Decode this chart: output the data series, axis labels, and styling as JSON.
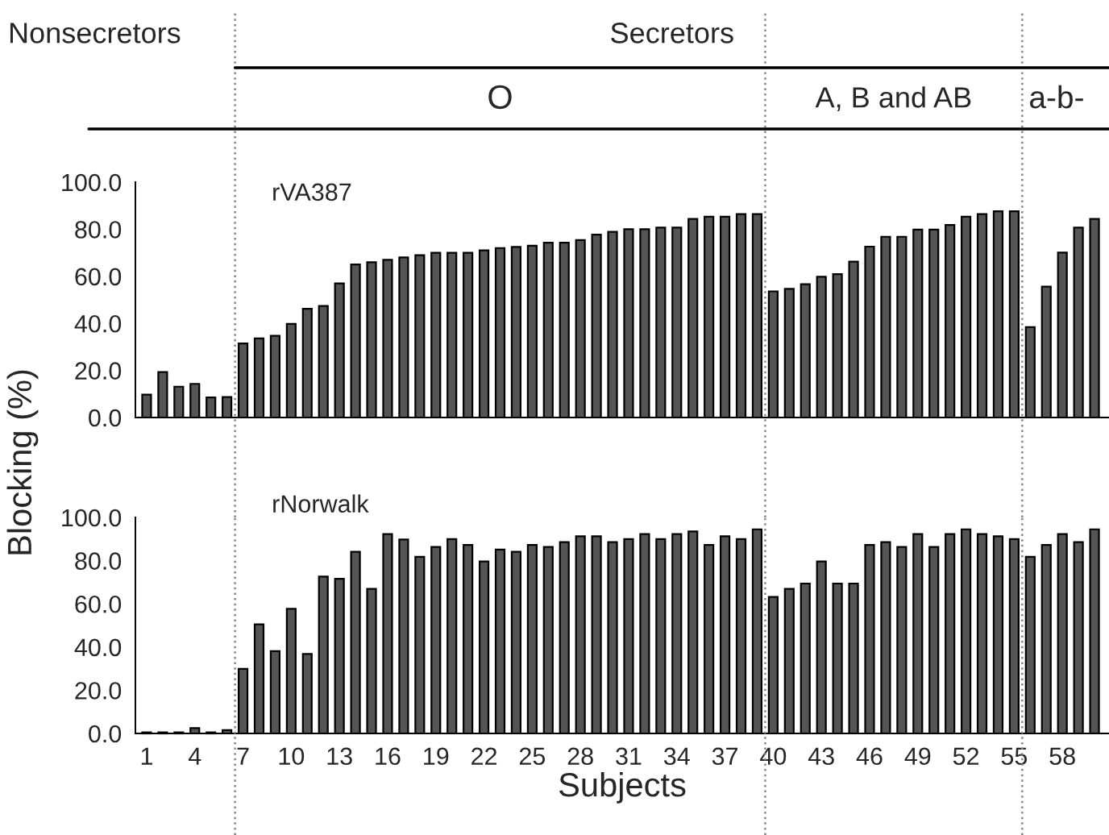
{
  "chart_data": [
    {
      "type": "bar",
      "title": "rVA387",
      "ylabel": "Blocking (%)",
      "annotations": [
        "Nonsecretors",
        "Secretors",
        "O",
        "A, B and AB",
        "a-b-"
      ],
      "x": [
        1,
        2,
        3,
        4,
        5,
        6,
        7,
        8,
        9,
        10,
        11,
        12,
        13,
        14,
        15,
        16,
        17,
        18,
        19,
        20,
        21,
        22,
        23,
        24,
        25,
        26,
        27,
        28,
        29,
        30,
        31,
        32,
        33,
        34,
        35,
        36,
        37,
        38,
        39,
        40,
        41,
        42,
        43,
        44,
        45,
        46,
        47,
        48,
        49,
        50,
        51,
        52,
        53,
        54,
        55,
        56,
        57,
        58,
        59,
        60
      ],
      "values": [
        9.7,
        19.3,
        13.1,
        14.3,
        8.5,
        8.7,
        31.5,
        33.6,
        34.7,
        39.8,
        46.2,
        47.4,
        57,
        65,
        66,
        67,
        68,
        69,
        70,
        70,
        70,
        71,
        72,
        72.5,
        73,
        74.3,
        74.3,
        75.4,
        77.7,
        78.9,
        80,
        80,
        80.7,
        80.7,
        84.4,
        85.3,
        85.3,
        86.4,
        86.4,
        53.6,
        54.7,
        56.6,
        59.8,
        60.9,
        66.2,
        72.6,
        76.8,
        76.8,
        79.8,
        79.8,
        81.8,
        85.3,
        86.4,
        87.6,
        87.6,
        38.4,
        55.6,
        70.1,
        80.7,
        84.4
      ],
      "color": "#555555",
      "xlim": [
        0.3,
        60.9
      ],
      "xticks": [
        1,
        4,
        7,
        10,
        13,
        16,
        19,
        22,
        25,
        28,
        31,
        34,
        37,
        40,
        43,
        46,
        49,
        52,
        55,
        58
      ],
      "ylim": [
        0,
        100
      ],
      "yticks": [
        {
          "value": 0,
          "label": "0.0"
        },
        {
          "value": 20,
          "label": "20.0"
        },
        {
          "value": 40,
          "label": "40.0"
        },
        {
          "value": 60,
          "label": "60.0"
        },
        {
          "value": 80,
          "label": "80.0"
        },
        {
          "value": 100,
          "label": "100.0"
        }
      ],
      "tick_labels": "y",
      "ref_lines": [
        {
          "axis": "x",
          "value": 6.5,
          "line_style": "dotted",
          "color": "#888888"
        },
        {
          "axis": "x",
          "value": 39.5,
          "line_style": "dotted",
          "color": "#888888"
        },
        {
          "axis": "x",
          "value": 55.5,
          "line_style": "dotted",
          "color": "#888888"
        }
      ]
    },
    {
      "type": "bar",
      "title": "rNorwalk",
      "xlabel": "Subjects",
      "x": [
        1,
        2,
        3,
        4,
        5,
        6,
        7,
        8,
        9,
        10,
        11,
        12,
        13,
        14,
        15,
        16,
        17,
        18,
        19,
        20,
        21,
        22,
        23,
        24,
        25,
        26,
        27,
        28,
        29,
        30,
        31,
        32,
        33,
        34,
        35,
        36,
        37,
        38,
        39,
        40,
        41,
        42,
        43,
        44,
        45,
        46,
        47,
        48,
        49,
        50,
        51,
        52,
        53,
        54,
        55,
        56,
        57,
        58,
        59,
        60
      ],
      "values": [
        0.5,
        0.5,
        0.5,
        2.5,
        0.5,
        1.5,
        29.9,
        50.5,
        38.1,
        57.7,
        36.8,
        72.6,
        71.6,
        84.1,
        66.9,
        92.3,
        89.8,
        81.8,
        86.3,
        90,
        87.3,
        79.6,
        85.1,
        84.1,
        87.3,
        86.3,
        88.6,
        91.3,
        91.3,
        88.6,
        90,
        92.3,
        90,
        92.3,
        93.5,
        87.3,
        91.3,
        90,
        94.5,
        63.2,
        66.9,
        69.4,
        79.6,
        69.4,
        69.4,
        87.3,
        88.6,
        86.3,
        92.3,
        86.3,
        92.3,
        94.5,
        92.3,
        91.3,
        90,
        81.8,
        87.3,
        92.3,
        88.6,
        94.5
      ],
      "color": "#555555",
      "xlim": [
        0.3,
        60.9
      ],
      "xticks": [
        1,
        4,
        7,
        10,
        13,
        16,
        19,
        22,
        25,
        28,
        31,
        34,
        37,
        40,
        43,
        46,
        49,
        52,
        55,
        58
      ],
      "ylim": [
        0,
        100
      ],
      "yticks": [
        {
          "value": 0,
          "label": "0.0"
        },
        {
          "value": 20,
          "label": "20.0"
        },
        {
          "value": 40,
          "label": "40.0"
        },
        {
          "value": 60,
          "label": "60.0"
        },
        {
          "value": 80,
          "label": "80.0"
        },
        {
          "value": 100,
          "label": "100.0"
        }
      ],
      "ref_lines": [
        {
          "axis": "x",
          "value": 6.5,
          "line_style": "dotted",
          "color": "#888888"
        },
        {
          "axis": "x",
          "value": 39.5,
          "line_style": "dotted",
          "color": "#888888"
        },
        {
          "axis": "x",
          "value": 55.5,
          "line_style": "dotted",
          "color": "#888888"
        }
      ]
    }
  ]
}
